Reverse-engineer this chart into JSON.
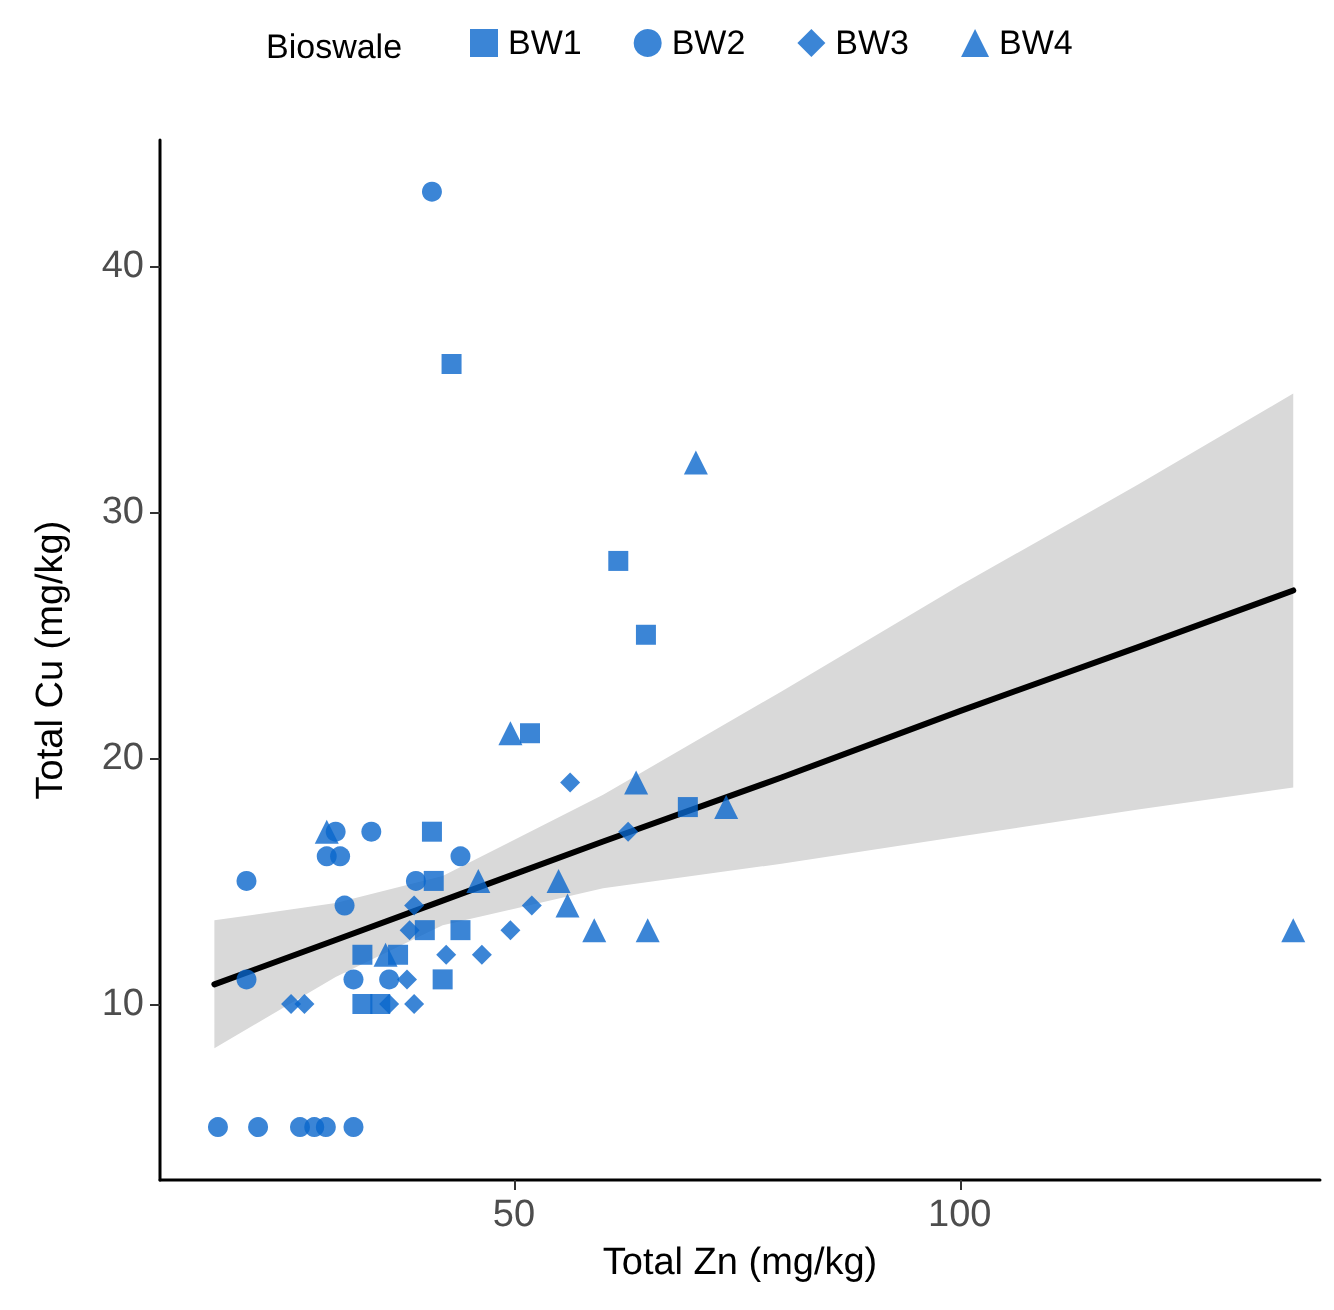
{
  "chart_data": {
    "type": "scatter",
    "xlabel": "Total Zn (mg/kg)",
    "ylabel": "Total Cu (mg/kg)",
    "legend_title": "Bioswale",
    "legend": "top",
    "grid": false,
    "xlim": [
      10.3,
      140.4
    ],
    "xticks": [
      50,
      100
    ],
    "ylim": [
      2.85,
      45.1
    ],
    "yticks": [
      10,
      20,
      30,
      40
    ],
    "series": [
      {
        "name": "BW1",
        "color": "#0a66cc",
        "marker": "square",
        "x": [
          43,
          61.7,
          64.8,
          51.8,
          40.8,
          69.5,
          33,
          37,
          40,
          42,
          44,
          33,
          35,
          41
        ],
        "values": [
          36,
          28,
          25,
          21,
          17,
          18,
          12,
          12,
          13,
          11,
          13,
          10,
          10,
          15
        ]
      },
      {
        "name": "BW2",
        "color": "#0a66cc",
        "marker": "circle",
        "x": [
          40.8,
          20,
          20,
          16.8,
          21.3,
          26,
          27.6,
          28.9,
          32,
          30,
          34,
          29,
          30.5,
          44,
          31,
          39,
          32,
          36
        ],
        "values": [
          43,
          15,
          11,
          5,
          5,
          5,
          5,
          5,
          5,
          17,
          17,
          16,
          16,
          16,
          14,
          15,
          11,
          11
        ]
      },
      {
        "name": "BW3",
        "color": "#0a66cc",
        "marker": "diamond",
        "x": [
          56.3,
          62.8,
          49.6,
          52,
          46.4,
          42.4,
          38,
          38.8,
          36,
          25,
          26.5,
          38.8,
          38.3
        ],
        "values": [
          19,
          17,
          13,
          14,
          12,
          12,
          11,
          10,
          10,
          10,
          10,
          14,
          13
        ]
      },
      {
        "name": "BW4",
        "color": "#0a66cc",
        "marker": "triangle",
        "x": [
          70.4,
          137.4,
          49.6,
          63.7,
          73.8,
          29,
          46,
          55,
          56,
          59,
          65,
          35.6
        ],
        "values": [
          32,
          13,
          21,
          19,
          18,
          17,
          15,
          15,
          14,
          13,
          13,
          12
        ]
      },
      {
        "type": "line",
        "color": "#000000",
        "marker": "none",
        "line_style": "solid",
        "x": [
          16.4,
          30,
          42,
          60,
          80,
          100,
          120,
          137.4
        ],
        "values": [
          10.8,
          12.6,
          14.2,
          16.6,
          19.2,
          21.9,
          24.5,
          26.8
        ],
        "lower": [
          8.2,
          11.1,
          13.2,
          14.7,
          15.7,
          16.8,
          17.9,
          18.8
        ],
        "upper": [
          13.4,
          14.1,
          15.2,
          18.5,
          22.7,
          27.0,
          31.1,
          34.8
        ]
      }
    ]
  }
}
